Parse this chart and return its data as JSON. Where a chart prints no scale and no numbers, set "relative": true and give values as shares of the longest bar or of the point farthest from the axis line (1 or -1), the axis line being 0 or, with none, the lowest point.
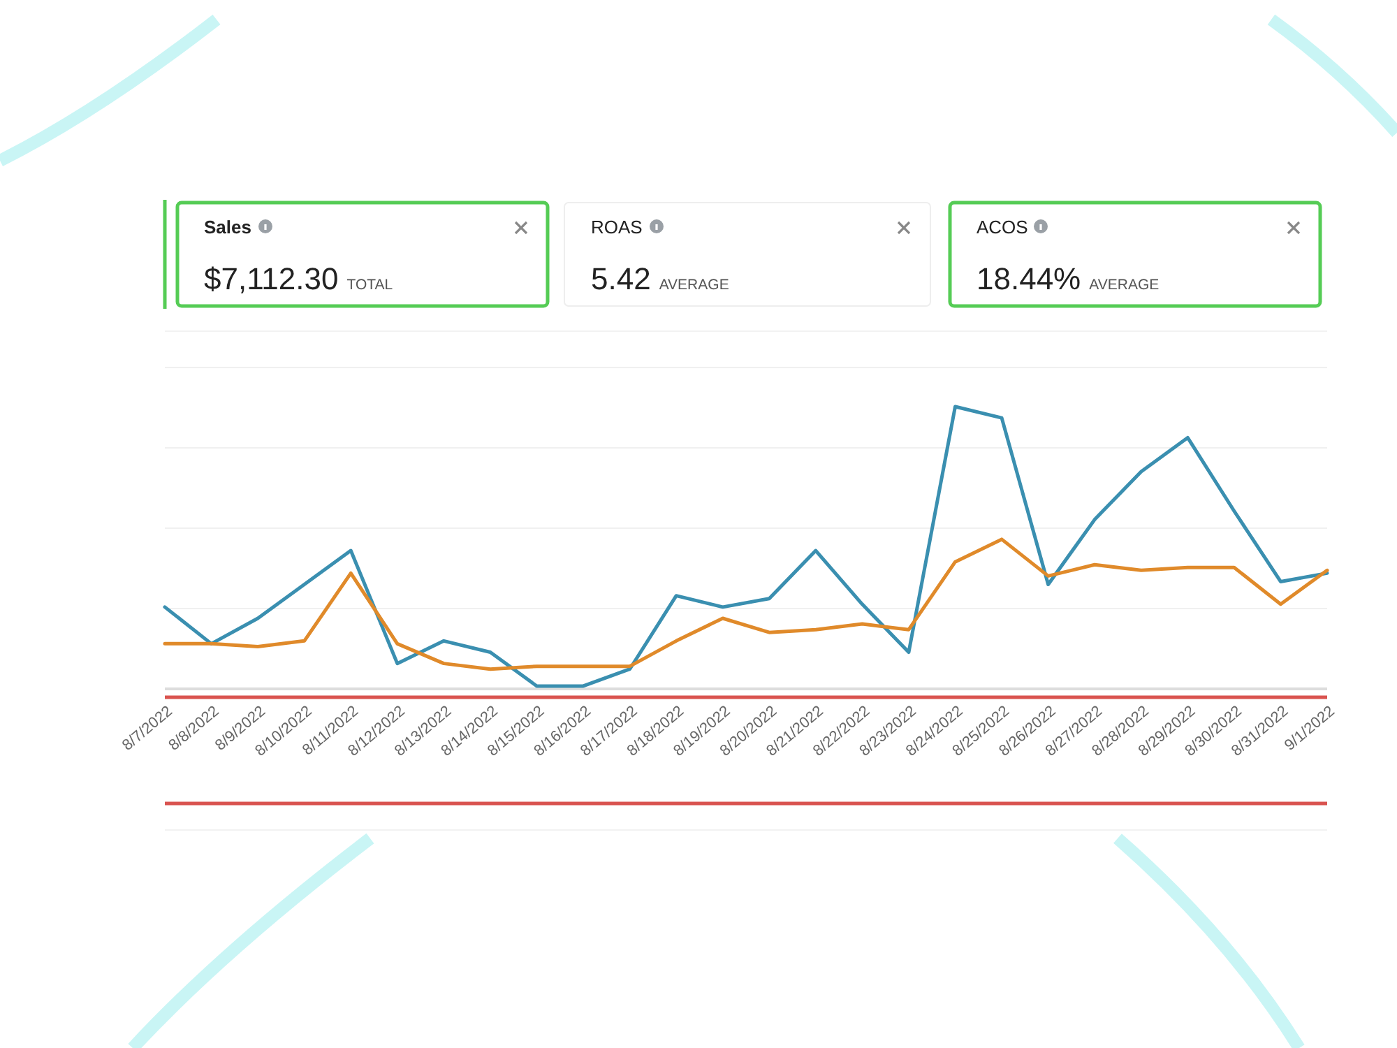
{
  "chart_data": {
    "type": "line",
    "relative": true,
    "grid": "y",
    "annotations": [
      "Sales",
      "$7,112.30",
      "TOTAL",
      "ROAS",
      "5.42",
      "AVERAGE",
      "ACOS",
      "18.44%",
      "AVERAGE"
    ],
    "categories": [
      "8/7/2022",
      "8/8/2022",
      "8/9/2022",
      "8/10/2022",
      "8/11/2022",
      "8/12/2022",
      "8/13/2022",
      "8/14/2022",
      "8/15/2022",
      "8/16/2022",
      "8/17/2022",
      "8/18/2022",
      "8/19/2022",
      "8/20/2022",
      "8/21/2022",
      "8/22/2022",
      "8/23/2022",
      "8/24/2022",
      "8/25/2022",
      "8/26/2022",
      "8/27/2022",
      "8/28/2022",
      "8/29/2022",
      "8/30/2022",
      "8/31/2022",
      "9/1/2022"
    ],
    "series": [
      {
        "color": "#3a8fb0",
        "values": [
          0.29,
          0.16,
          0.25,
          0.37,
          0.49,
          0.09,
          0.17,
          0.13,
          0.01,
          0.01,
          0.07,
          0.33,
          0.29,
          0.32,
          0.49,
          0.3,
          0.13,
          1,
          0.96,
          0.37,
          0.6,
          0.77,
          0.89,
          0.63,
          0.38,
          0.41
        ]
      },
      {
        "color": "#e08a2a",
        "values": [
          0.16,
          0.16,
          0.15,
          0.17,
          0.41,
          0.16,
          0.09,
          0.07,
          0.08,
          0.08,
          0.08,
          0.17,
          0.25,
          0.2,
          0.21,
          0.23,
          0.21,
          0.45,
          0.53,
          0.4,
          0.44,
          0.42,
          0.43,
          0.43,
          0.3,
          0.42
        ]
      }
    ]
  }
}
